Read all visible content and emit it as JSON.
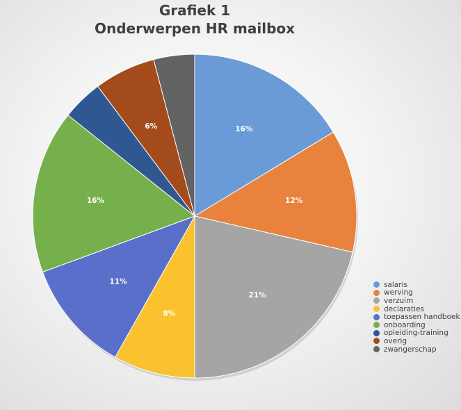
{
  "chart_data": {
    "type": "pie",
    "title": "Grafiek 1",
    "subtitle": "Onderwerpen HR mailbox",
    "legend_position": "bottom-right",
    "slices": [
      {
        "label": "salaris",
        "value": 16,
        "display": "16%",
        "color": "#6a9bd7"
      },
      {
        "label": "werving",
        "value": 12,
        "display": "12%",
        "color": "#e8823d"
      },
      {
        "label": "verzuim",
        "value": 21,
        "display": "21%",
        "color": "#a5a5a5"
      },
      {
        "label": "declaraties",
        "value": 8,
        "display": "8%",
        "color": "#f9c22e"
      },
      {
        "label": "toepassen handboek",
        "value": 11,
        "display": "11%",
        "color": "#5a6fca"
      },
      {
        "label": "onboarding",
        "value": 16,
        "display": "16%",
        "color": "#76b04c"
      },
      {
        "label": "opleiding-training",
        "value": 4,
        "display": "4%",
        "color": "#2f5893"
      },
      {
        "label": "overig",
        "value": 6,
        "display": "6%",
        "color": "#a44b1b"
      },
      {
        "label": "zwangerschap",
        "value": 4,
        "display": "4%",
        "color": "#636363"
      }
    ]
  }
}
